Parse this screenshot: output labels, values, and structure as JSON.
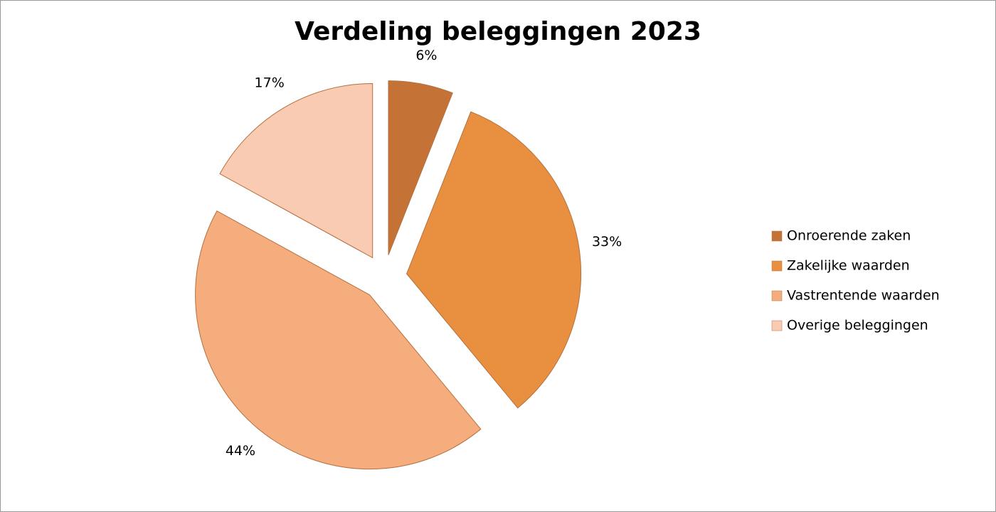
{
  "chart_data": {
    "type": "pie",
    "title": "Verdeling beleggingen 2023",
    "categories": [
      "Onroerende zaken",
      "Zakelijke waarden",
      "Vastrentende waarden",
      "Overige beleggingen"
    ],
    "values": [
      6,
      33,
      44,
      17
    ],
    "value_labels": [
      "6%",
      "33%",
      "44%",
      "17%"
    ],
    "colors": [
      "#c47236",
      "#e8903f",
      "#f5ad7d",
      "#f8cbb2"
    ],
    "legend": "right"
  }
}
